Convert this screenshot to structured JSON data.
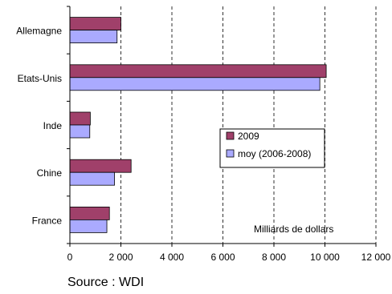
{
  "chart_data": {
    "type": "bar",
    "orientation": "horizontal",
    "categories": [
      "Allemagne",
      "Etats-Unis",
      "Inde",
      "Chine",
      "France"
    ],
    "series": [
      {
        "name": "2009",
        "color": "#a0406a",
        "values": [
          2000,
          10050,
          800,
          2400,
          1550
        ]
      },
      {
        "name": "moy (2006-2008)",
        "color": "#aaaaff",
        "values": [
          1850,
          9800,
          780,
          1750,
          1450
        ]
      }
    ],
    "xlim": [
      0,
      12000
    ],
    "xticks": [
      0,
      2000,
      4000,
      6000,
      8000,
      10000,
      12000
    ],
    "xtick_labels": [
      "0",
      "2 000",
      "4 000",
      "6 000",
      "8 000",
      "10 000",
      "12 000"
    ],
    "unit_annotation": "Milliards de dollars",
    "grid": "vertical-dashed",
    "legend_placement": "center-right"
  },
  "footer": {
    "source": "Source : WDI"
  }
}
